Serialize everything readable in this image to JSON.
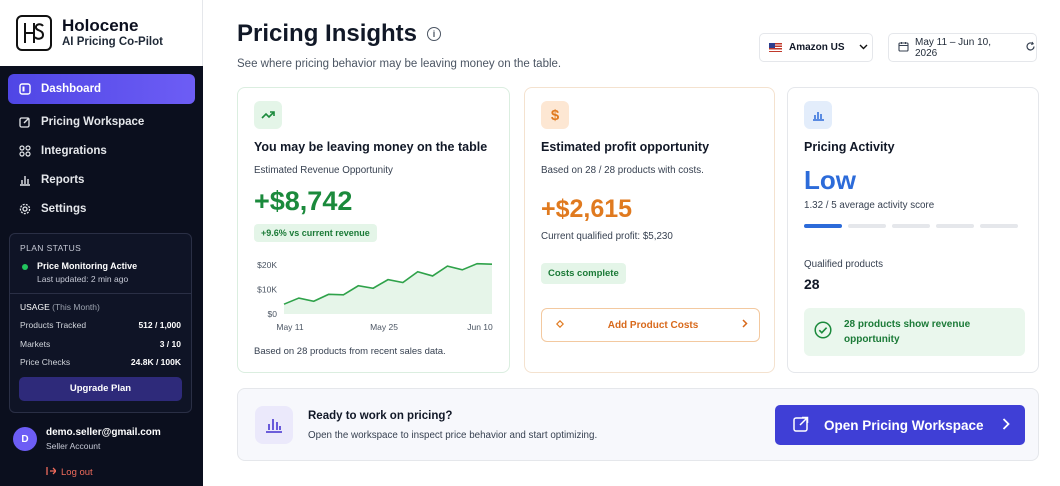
{
  "brand": {
    "name": "Holocene",
    "tagline": "AI Pricing Co-Pilot",
    "logo_icon": "hs-monogram-logo"
  },
  "nav": [
    {
      "label": "Dashboard",
      "icon": "dashboard-icon",
      "active": true
    },
    {
      "label": "Pricing Workspace",
      "icon": "edit-icon",
      "active": false
    },
    {
      "label": "Integrations",
      "icon": "integrations-icon",
      "active": false
    },
    {
      "label": "Reports",
      "icon": "reports-icon",
      "active": false
    },
    {
      "label": "Settings",
      "icon": "gear-icon",
      "active": false
    }
  ],
  "plan": {
    "header": "PLAN STATUS",
    "status": "Price Monitoring Active",
    "updated": "Last updated: 2 min ago",
    "usage_header": "USAGE",
    "usage_period": "(This Month)",
    "usage": [
      {
        "label": "Products Tracked",
        "value": "512 / 1,000"
      },
      {
        "label": "Markets",
        "value": "3 / 10"
      },
      {
        "label": "Price Checks",
        "value": "24.8K / 100K"
      }
    ],
    "upgrade_label": "Upgrade Plan"
  },
  "user": {
    "initial": "D",
    "email": "demo.seller@gmail.com",
    "role": "Seller Account",
    "logout_label": "Log out"
  },
  "header": {
    "title": "Pricing Insights",
    "subtitle": "See where pricing behavior may be leaving money on the table.",
    "market": "Amazon US",
    "date_range": "May 11 – Jun 10, 2026"
  },
  "card_revenue": {
    "title": "You may be leaving money on the table",
    "subtitle": "Estimated Revenue Opportunity",
    "value": "+$8,742",
    "delta": "+9.6% vs current revenue",
    "footnote": "Based on 28 products from recent sales data."
  },
  "card_profit": {
    "title": "Estimated profit opportunity",
    "subtitle": "Based on 28 / 28 products with costs.",
    "value": "+$2,615",
    "current": "Current qualified profit: $5,230",
    "status": "Costs complete",
    "action_label": "Add Product Costs"
  },
  "card_activity": {
    "title": "Pricing Activity",
    "level": "Low",
    "score": "1.32 / 5 average activity score",
    "segments_on": 1,
    "segments_total": 5,
    "qualified_label": "Qualified products",
    "qualified_value": "28",
    "revenue_note": "28 products show revenue opportunity"
  },
  "banner": {
    "title": "Ready to work on pricing?",
    "subtitle": "Open the workspace to inspect price behavior and start optimizing.",
    "button_label": "Open Pricing Workspace"
  },
  "chart_data": {
    "type": "area",
    "x_ticks": [
      "May 11",
      "May 25",
      "Jun 10"
    ],
    "y_ticks": [
      "$0",
      "$10K",
      "$20K"
    ],
    "ylim": [
      0,
      22000
    ],
    "values": [
      4000,
      6500,
      5200,
      8000,
      7800,
      11500,
      10500,
      14000,
      12800,
      17200,
      15500,
      19500,
      18000,
      20500,
      20300
    ],
    "color": "#2fa24a"
  },
  "colors": {
    "accent": "#4f46e5",
    "green": "#1b8a3c",
    "orange": "#e07a1f",
    "blue": "#2c6bd9"
  }
}
